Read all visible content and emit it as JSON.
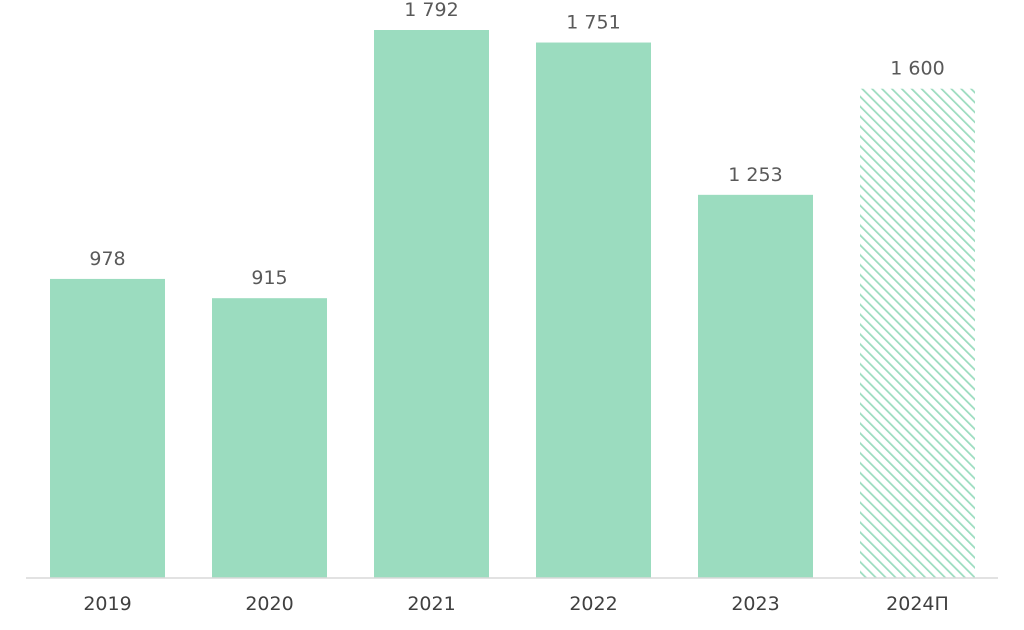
{
  "chart_data": {
    "type": "bar",
    "categories": [
      "2019",
      "2020",
      "2021",
      "2022",
      "2023",
      "2024П"
    ],
    "values": [
      978,
      915,
      1792,
      1751,
      1253,
      1600
    ],
    "value_labels": [
      "978",
      "915",
      "1 792",
      "1 751",
      "1 253",
      "1 600"
    ],
    "forecast": [
      false,
      false,
      false,
      false,
      false,
      true
    ],
    "title": "",
    "xlabel": "",
    "ylabel": "",
    "ylim": [
      0,
      1792
    ],
    "grid": false,
    "legend": "none",
    "colors": {
      "bar": "#9bdcbf",
      "hatch": "#9bdcbf",
      "axis": "#d9d9d9"
    }
  }
}
